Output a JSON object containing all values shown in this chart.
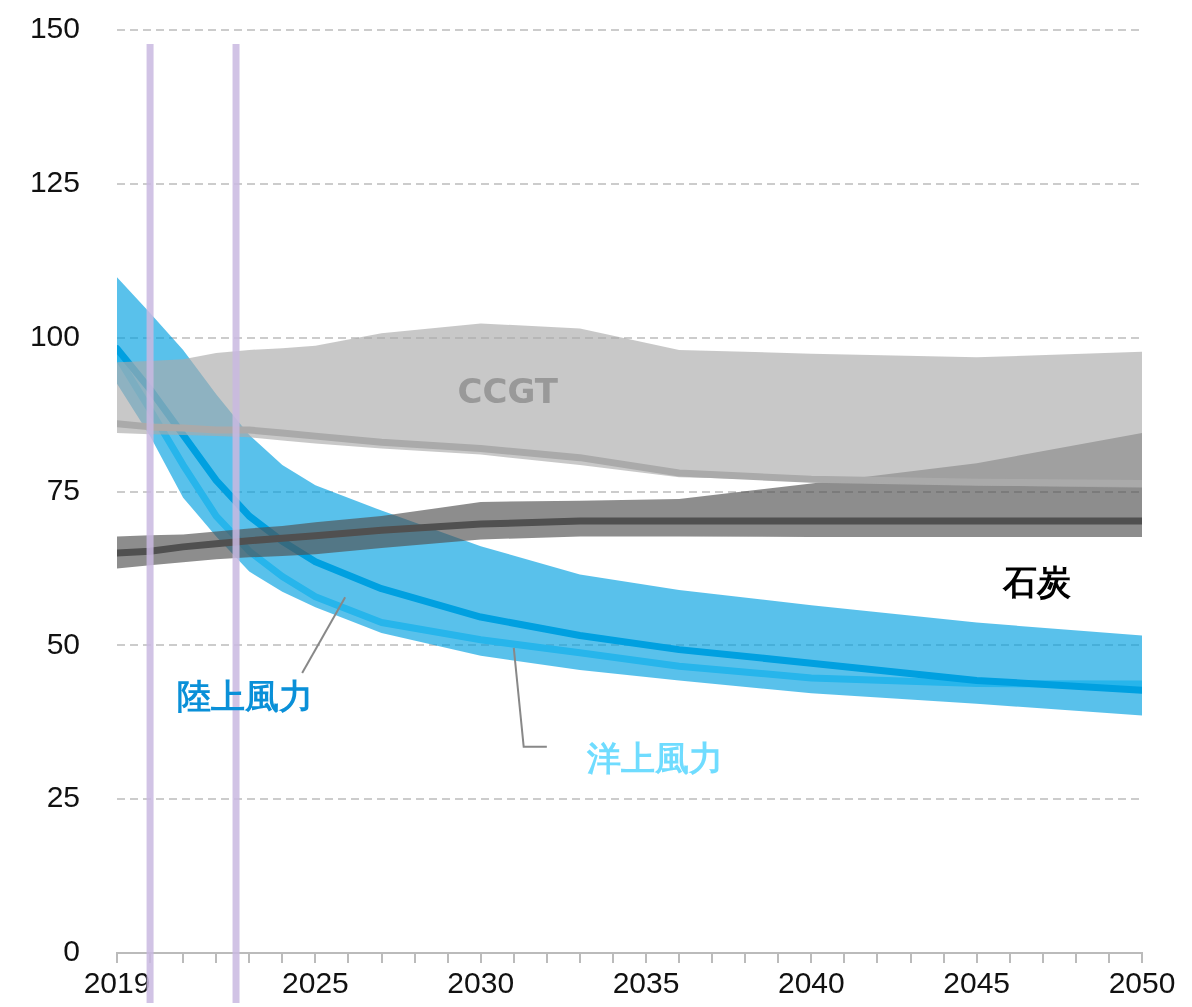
{
  "chart_data": {
    "type": "line",
    "x": [
      2019,
      2020,
      2021,
      2022,
      2023,
      2024,
      2025,
      2027,
      2030,
      2033,
      2036,
      2040,
      2045,
      2050
    ],
    "series": [
      {
        "name": "CCGT",
        "color": "#aaaaaa",
        "values": [
          86,
          85.5,
          85.3,
          85,
          85,
          84.5,
          84,
          83,
          82,
          80.5,
          78,
          77,
          76.5,
          76.3
        ],
        "upper": [
          96,
          96.2,
          96.5,
          97.5,
          98,
          98.3,
          98.7,
          100.7,
          102.3,
          101.5,
          98,
          97.4,
          96.8,
          97.7
        ],
        "lower": [
          84.5,
          84.3,
          84.2,
          84,
          83.8,
          83.3,
          82.8,
          82,
          81,
          79.3,
          77.3,
          76.8,
          76,
          75.6
        ]
      },
      {
        "name": "石炭",
        "color": "#505050",
        "values": [
          65,
          65.3,
          66,
          66.5,
          67,
          67.4,
          67.8,
          68.7,
          69.7,
          70.2,
          70.2,
          70.2,
          70.2,
          70.2
        ],
        "upper": [
          67.7,
          67.9,
          68,
          68.5,
          69,
          69.4,
          70,
          71,
          73.3,
          73.5,
          73.8,
          76.3,
          79.6,
          84.5
        ],
        "lower": [
          62.5,
          63,
          63.5,
          64,
          64.3,
          64.5,
          64.8,
          65.8,
          67.2,
          67.7,
          67.7,
          67.6,
          67.6,
          67.6
        ]
      },
      {
        "name": "陸上風力",
        "color": "#00a0e0",
        "values": [
          98.2,
          91.6,
          84.2,
          76.8,
          71,
          66.9,
          63.6,
          59.2,
          54.6,
          51.6,
          49.3,
          47.1,
          44.3,
          42.7
        ],
        "upper": [
          109.8,
          104,
          98,
          90.8,
          84.2,
          79.3,
          76,
          71.9,
          66.1,
          61.5,
          59,
          56.5,
          53.7,
          51.6
        ],
        "lower": [
          92.5,
          84,
          74,
          67.7,
          62,
          58.7,
          56.2,
          52,
          48.3,
          46,
          44.3,
          42.2,
          40.5,
          38.6
        ]
      },
      {
        "name": "洋上風力",
        "color": "#6fdcff",
        "values": [
          97,
          88.3,
          79.3,
          71,
          65.3,
          61.2,
          57.9,
          53.7,
          50.9,
          48.8,
          46.6,
          44.7,
          43.8,
          43.7
        ]
      }
    ],
    "xlim": [
      2019,
      2050
    ],
    "xticks": [
      2019,
      {
        "value": 2020,
        "label": null
      },
      {
        "value": 2021,
        "label": null
      },
      {
        "value": 2022,
        "label": null
      },
      {
        "value": 2023,
        "label": null
      },
      {
        "value": 2024,
        "label": null
      },
      2025,
      {
        "value": 2026,
        "label": null
      },
      {
        "value": 2027,
        "label": null
      },
      {
        "value": 2028,
        "label": null
      },
      {
        "value": 2029,
        "label": null
      },
      2030,
      {
        "value": 2031,
        "label": null
      },
      {
        "value": 2032,
        "label": null
      },
      {
        "value": 2033,
        "label": null
      },
      {
        "value": 2034,
        "label": null
      },
      2035,
      {
        "value": 2036,
        "label": null
      },
      {
        "value": 2037,
        "label": null
      },
      {
        "value": 2038,
        "label": null
      },
      {
        "value": 2039,
        "label": null
      },
      2040,
      {
        "value": 2041,
        "label": null
      },
      {
        "value": 2042,
        "label": null
      },
      {
        "value": 2043,
        "label": null
      },
      {
        "value": 2044,
        "label": null
      },
      2045,
      {
        "value": 2046,
        "label": null
      },
      {
        "value": 2047,
        "label": null
      },
      {
        "value": 2048,
        "label": null
      },
      {
        "value": 2049,
        "label": null
      },
      2050
    ],
    "ylim": [
      0,
      150
    ],
    "yticks": [
      0,
      25,
      50,
      75,
      100,
      125,
      150
    ],
    "grid": "y",
    "legend": false,
    "marker": "none",
    "line_style": "solid",
    "ref_lines": [
      {
        "axis": "x",
        "value": 2020,
        "color": "#c9b8e0"
      },
      {
        "axis": "x",
        "value": 2022.6,
        "color": "#c9b8e0"
      }
    ]
  }
}
